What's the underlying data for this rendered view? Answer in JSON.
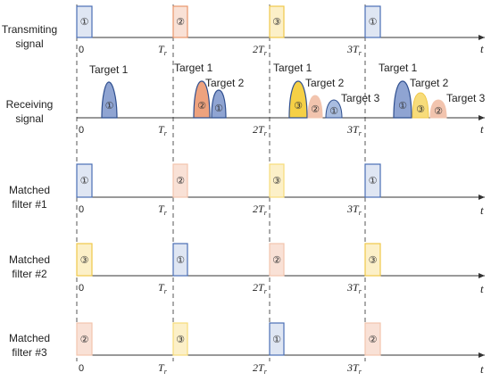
{
  "rows": [
    {
      "label": [
        "Transmiting",
        "signal"
      ],
      "pulses": [
        "①",
        "②",
        "③",
        "①"
      ]
    },
    {
      "label": [
        "Receiving",
        "signal"
      ]
    },
    {
      "label": [
        "Matched",
        "filter #1"
      ],
      "pulses": [
        "①",
        "②",
        "③",
        "①"
      ]
    },
    {
      "label": [
        "Matched",
        "filter #2"
      ],
      "pulses": [
        "③",
        "①",
        "②",
        "③"
      ]
    },
    {
      "label": [
        "Matched",
        "filter #3"
      ],
      "pulses": [
        "②",
        "③",
        "①",
        "②"
      ]
    }
  ],
  "ticks": {
    "zero": "0",
    "t1": "T",
    "t2": "2T",
    "t3": "3T",
    "sub": "r"
  },
  "axis_label": "t",
  "receive_groups": [
    {
      "targets": [
        {
          "label": "Target 1",
          "num": "①"
        }
      ]
    },
    {
      "targets": [
        {
          "label": "Target 1",
          "num": "②"
        },
        {
          "label": "Target 2",
          "num": "①"
        }
      ]
    },
    {
      "targets": [
        {
          "label": "Target 1",
          "num": "③"
        },
        {
          "label": "Target 2",
          "num": "②"
        },
        {
          "label": "Target 3",
          "num": "①"
        }
      ]
    },
    {
      "targets": [
        {
          "label": "Target 1",
          "num": "①"
        },
        {
          "label": "Target 2",
          "num": "③"
        },
        {
          "label": "Target 3",
          "num": "②"
        }
      ]
    }
  ],
  "colors": {
    "blue": "#4a6fb5",
    "blue_fill": "#dfe6f3",
    "orange": "#e8956b",
    "orange_fill": "#f9e1d6",
    "yellow": "#f0c94a",
    "yellow_fill": "#fcf0c8",
    "axis": "#333333",
    "dash": "#555555"
  }
}
